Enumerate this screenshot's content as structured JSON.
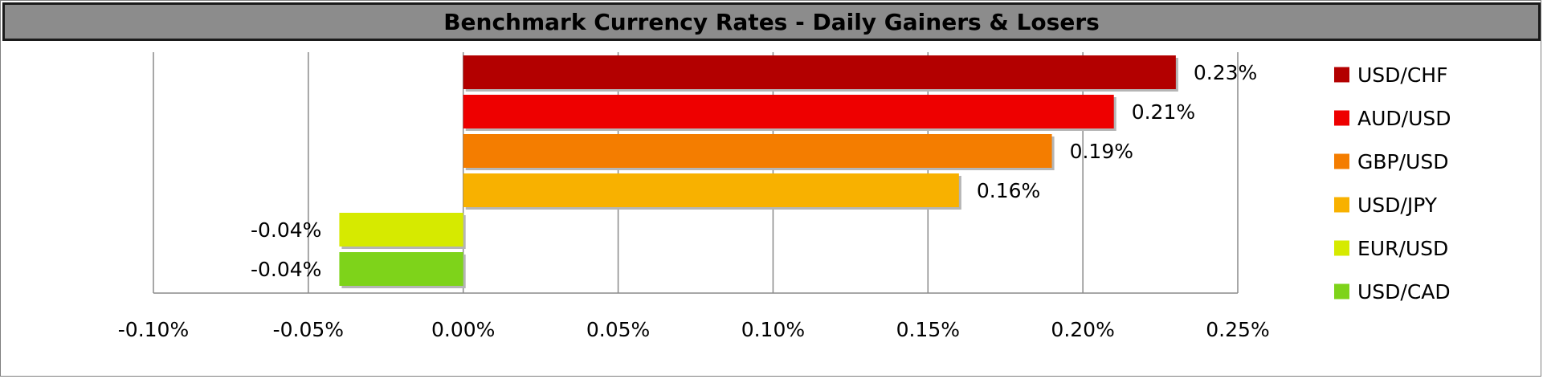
{
  "chart_data": {
    "type": "bar",
    "orientation": "horizontal",
    "title": "Benchmark Currency Rates - Daily Gainers & Losers",
    "xlim": [
      -0.1,
      0.25
    ],
    "x_ticks": [
      -0.1,
      -0.05,
      0.0,
      0.05,
      0.1,
      0.15,
      0.2,
      0.25
    ],
    "x_tick_labels": [
      "-0.10%",
      "-0.05%",
      "0.00%",
      "0.05%",
      "0.10%",
      "0.15%",
      "0.20%",
      "0.25%"
    ],
    "grid": "vertical",
    "legend_position": "right",
    "categories": [
      "USD/CHF",
      "AUD/USD",
      "GBP/USD",
      "USD/JPY",
      "EUR/USD",
      "USD/CAD"
    ],
    "values": [
      0.23,
      0.21,
      0.19,
      0.16,
      -0.04,
      -0.04
    ],
    "value_labels": [
      "0.23%",
      "0.21%",
      "0.19%",
      "0.16%",
      "-0.04%",
      "-0.04%"
    ],
    "colors": [
      "#b30000",
      "#ee0000",
      "#f47d00",
      "#f8b100",
      "#d6ea00",
      "#7ed31a"
    ]
  }
}
